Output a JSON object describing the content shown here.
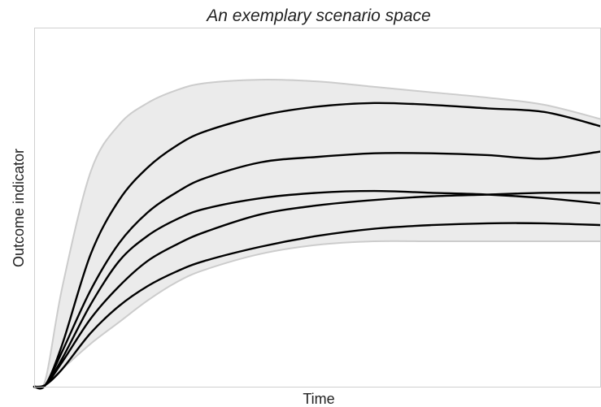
{
  "chart_data": {
    "type": "area",
    "title": "An exemplary scenario space",
    "xlabel": "Time",
    "ylabel": "Outcome indicator",
    "xlim": [
      0,
      100
    ],
    "ylim": [
      0,
      100
    ],
    "grid": false,
    "legend": "none",
    "ticks": "none",
    "colors": {
      "band_fill": "#ebebeb",
      "band_edge": "#cccccc",
      "lines": "#000000",
      "frame": "#cfcfcf"
    },
    "envelope": {
      "x": [
        0,
        2,
        5,
        10,
        15,
        20,
        25,
        30,
        40,
        50,
        60,
        70,
        80,
        90,
        100
      ],
      "upper": [
        0,
        2,
        28,
        60,
        73,
        79,
        82.5,
        84.5,
        85.5,
        85,
        83.5,
        82,
        80.5,
        78.5,
        74.5
      ],
      "lower": [
        0,
        0.5,
        5,
        12,
        18,
        24,
        29,
        32.5,
        37,
        39.5,
        40.5,
        40.5,
        40.5,
        40.5,
        40.5
      ]
    },
    "x": [
      0,
      2,
      5,
      10,
      15,
      20,
      25,
      30,
      40,
      50,
      60,
      70,
      80,
      90,
      100
    ],
    "series": [
      {
        "values": [
          0,
          0.5,
          12,
          37,
          52,
          61,
          67,
          71,
          75.5,
          78,
          79,
          78.5,
          77.5,
          76.5,
          72.5
        ]
      },
      {
        "values": [
          0,
          0.5,
          10,
          27,
          40,
          48.5,
          54,
          58,
          62.5,
          64,
          65,
          65,
          64.5,
          63.5,
          65.5
        ]
      },
      {
        "values": [
          0,
          0.5,
          8,
          23,
          35,
          42,
          46.5,
          49.5,
          52.5,
          54,
          54.5,
          54,
          53.5,
          52.5,
          51
        ]
      },
      {
        "values": [
          0,
          0.5,
          7,
          19,
          28,
          35,
          39.5,
          43,
          48,
          50.5,
          52,
          53,
          53.5,
          54,
          54
        ]
      },
      {
        "values": [
          0,
          0.5,
          5,
          15,
          22.5,
          28,
          32,
          35,
          39,
          42,
          44,
          45,
          45.5,
          45.5,
          45
        ]
      }
    ]
  }
}
